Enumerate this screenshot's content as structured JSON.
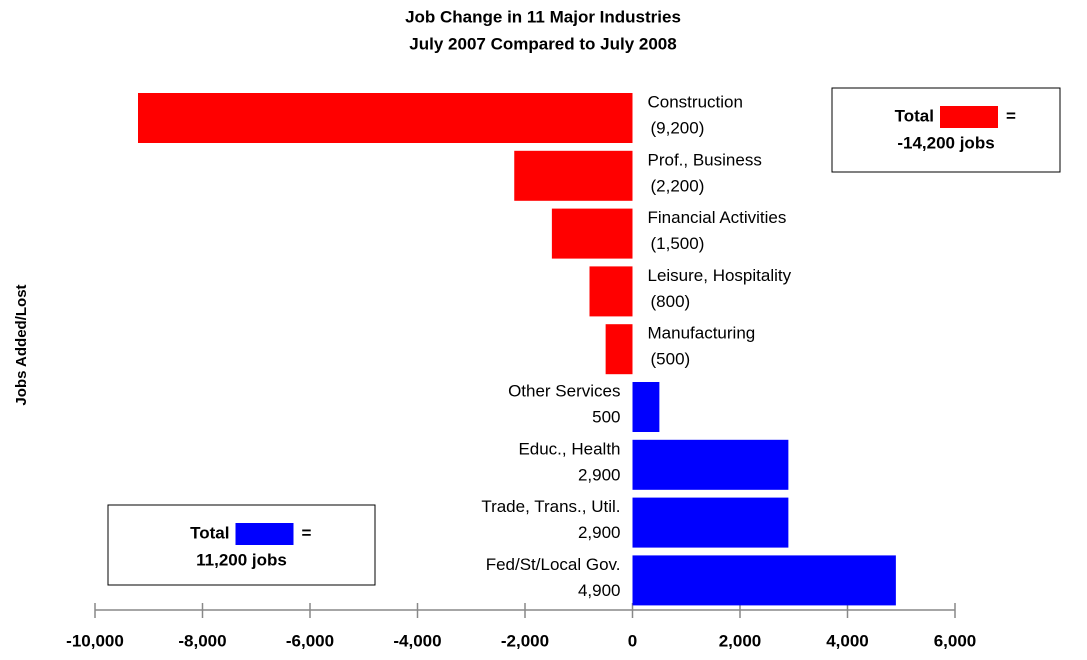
{
  "chart_data": {
    "type": "hbar",
    "title": "Job Change in 11 Major Industries",
    "subtitle": "July 2007 Compared to July 2008",
    "ylabel": "Jobs Added/Lost",
    "categories": [
      "Construction",
      "Prof., Business",
      "Financial Activities",
      "Leisure, Hospitality",
      "Manufacturing",
      "Other Services",
      "Educ., Health",
      "Trade, Trans., Util.",
      "Fed/St/Local Gov."
    ],
    "values": [
      -9200,
      -2200,
      -1500,
      -800,
      -500,
      500,
      2900,
      2900,
      4900
    ],
    "value_labels": [
      "(9,200)",
      "(2,200)",
      "(1,500)",
      "(800)",
      "(500)",
      "500",
      "2,900",
      "2,900",
      "4,900"
    ],
    "colors": [
      "#ff0000",
      "#ff0000",
      "#ff0000",
      "#ff0000",
      "#ff0000",
      "#0000ff",
      "#0000ff",
      "#0000ff",
      "#0000ff"
    ],
    "xlim": [
      -10000,
      6000
    ],
    "xticks": [
      {
        "value": -10000,
        "label": "-10,000"
      },
      {
        "value": -8000,
        "label": "-8,000"
      },
      {
        "value": -6000,
        "label": "-6,000"
      },
      {
        "value": -4000,
        "label": "-4,000"
      },
      {
        "value": -2000,
        "label": "-2,000"
      },
      0,
      {
        "value": 2000,
        "label": "2,000"
      },
      {
        "value": 4000,
        "label": "4,000"
      },
      {
        "value": 6000,
        "label": "6,000"
      }
    ],
    "annotations": [
      {
        "label": "Total",
        "equals": "=",
        "total": "-14,200 jobs",
        "color": "#ff0000"
      },
      {
        "label": "Total",
        "equals": "=",
        "total": "11,200 jobs",
        "color": "#0000ff"
      }
    ]
  }
}
